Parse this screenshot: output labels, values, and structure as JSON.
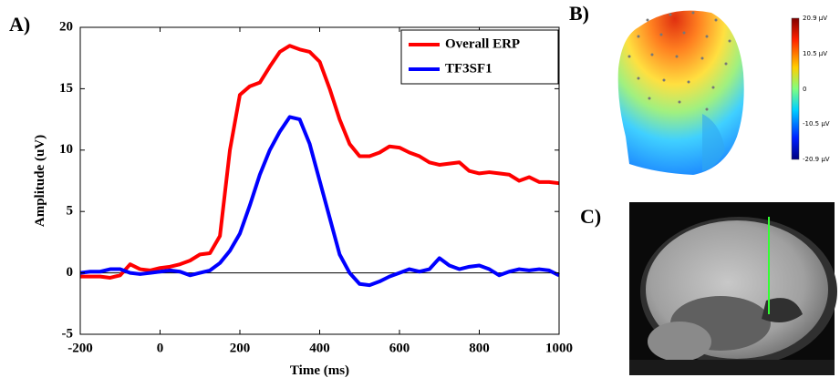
{
  "chart_data": {
    "type": "line",
    "panel_label": "A)",
    "x_label": "Time (ms)",
    "y_label": "Amplitude (uV)",
    "x": [
      -200,
      -175,
      -150,
      -125,
      -100,
      -75,
      -50,
      -25,
      0,
      25,
      50,
      75,
      100,
      125,
      150,
      175,
      200,
      225,
      250,
      275,
      300,
      325,
      350,
      375,
      400,
      425,
      450,
      475,
      500,
      525,
      550,
      575,
      600,
      625,
      650,
      675,
      700,
      725,
      750,
      775,
      800,
      825,
      850,
      875,
      900,
      925,
      950,
      975,
      1000
    ],
    "series": [
      {
        "name": "Overall ERP",
        "color": "#ff0000",
        "values": [
          -0.3,
          -0.3,
          -0.3,
          -0.4,
          -0.2,
          0.7,
          0.3,
          0.2,
          0.4,
          0.5,
          0.7,
          1.0,
          1.5,
          1.6,
          3.0,
          10.0,
          14.5,
          15.2,
          15.5,
          16.8,
          18.0,
          18.5,
          18.2,
          18.0,
          17.2,
          15.0,
          12.5,
          10.5,
          9.5,
          9.5,
          9.8,
          10.3,
          10.2,
          9.8,
          9.5,
          9.0,
          8.8,
          8.9,
          9.0,
          8.3,
          8.1,
          8.2,
          8.1,
          8.0,
          7.5,
          7.8,
          7.4,
          7.4,
          7.3
        ]
      },
      {
        "name": "TF3SF1",
        "color": "#0000ff",
        "values": [
          0.0,
          0.1,
          0.1,
          0.3,
          0.3,
          0.0,
          -0.1,
          0.0,
          0.1,
          0.2,
          0.1,
          -0.2,
          0.0,
          0.2,
          0.8,
          1.8,
          3.2,
          5.5,
          8.0,
          10.0,
          11.5,
          12.7,
          12.5,
          10.5,
          7.5,
          4.5,
          1.5,
          0.0,
          -0.9,
          -1.0,
          -0.7,
          -0.3,
          0.0,
          0.3,
          0.1,
          0.3,
          1.2,
          0.6,
          0.3,
          0.5,
          0.6,
          0.3,
          -0.2,
          0.1,
          0.3,
          0.2,
          0.3,
          0.2,
          -0.2
        ]
      }
    ],
    "xlim": [
      -200,
      1000
    ],
    "xticks": [
      -200,
      0,
      200,
      400,
      600,
      800,
      1000
    ],
    "ylim": [
      -5,
      20
    ],
    "yticks": [
      -5,
      0,
      5,
      10,
      15,
      20
    ],
    "legend": "upper right"
  },
  "panels": {
    "b": {
      "label": "B)",
      "colorbar_labels": [
        "20.9 µV",
        "10.5 µV",
        "0",
        "-10.5 µV",
        "-20.9 µV"
      ]
    },
    "c": {
      "label": "C)"
    }
  }
}
